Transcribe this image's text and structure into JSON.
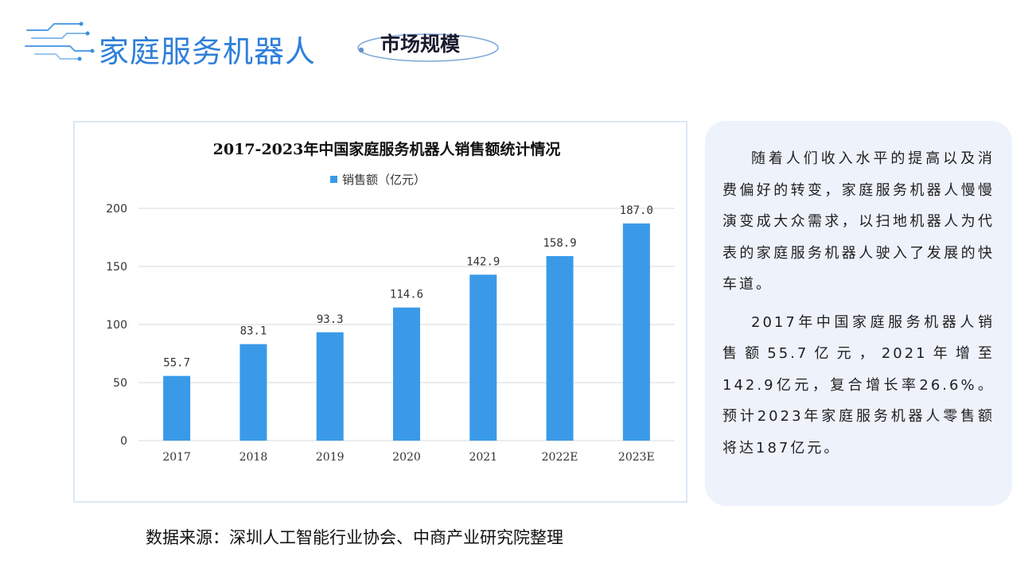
{
  "header": {
    "title": "家庭服务机器人",
    "section_tag": "市场规模"
  },
  "chart_data": {
    "type": "bar",
    "title": "2017-2023年中国家庭服务机器人销售额统计情况",
    "categories": [
      "2017",
      "2018",
      "2019",
      "2020",
      "2021",
      "2022E",
      "2023E"
    ],
    "series": [
      {
        "name": "销售额（亿元）",
        "values": [
          55.7,
          83.1,
          93.3,
          114.6,
          142.9,
          158.9,
          187.0
        ]
      }
    ],
    "value_labels": [
      "55.7",
      "83.1",
      "93.3",
      "114.6",
      "142.9",
      "158.9",
      "187.0"
    ],
    "y_ticks": [
      "0",
      "50",
      "100",
      "150",
      "200"
    ],
    "ylim": [
      0,
      200
    ],
    "xlabel": "",
    "ylabel": "",
    "legend_position": "top-center",
    "grid": true,
    "bar_color": "#3a9ae8",
    "grid_color": "#d9d9d9"
  },
  "source_note": "数据来源：深圳人工智能行业协会、中商产业研究院整理",
  "description": {
    "paragraphs": [
      "随着人们收入水平的提高以及消费偏好的转变，家庭服务机器人慢慢演变成大众需求，以扫地机器人为代表的家庭服务机器人驶入了发展的快车道。",
      "2017年中国家庭服务机器人销售额55.7亿元，2021年增至142.9亿元，复合增长率26.6%。预计2023年家庭服务机器人零售额将达187亿元。"
    ]
  }
}
